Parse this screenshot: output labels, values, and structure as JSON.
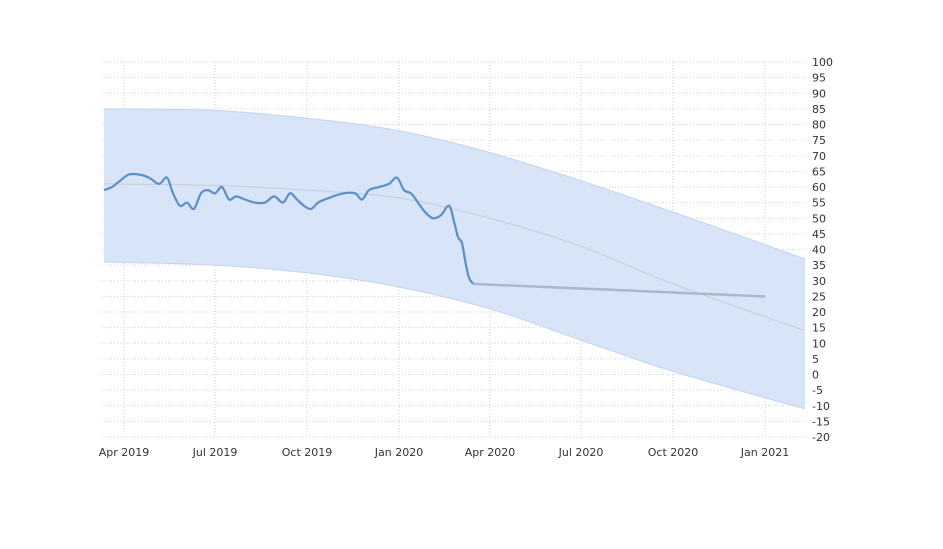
{
  "chart_data": {
    "type": "line",
    "title": "",
    "xlabel": "",
    "ylabel": "",
    "x_range": [
      "2019-03-10",
      "2021-02-10"
    ],
    "ylim": [
      -20,
      100
    ],
    "y_ticks": [
      100,
      95,
      90,
      85,
      80,
      75,
      70,
      65,
      60,
      55,
      50,
      45,
      40,
      35,
      30,
      25,
      20,
      15,
      10,
      5,
      0,
      -5,
      -10,
      -15,
      -20
    ],
    "x_ticks": [
      {
        "date": "2019-04-01",
        "label": "Apr 2019"
      },
      {
        "date": "2019-07-01",
        "label": "Jul 2019"
      },
      {
        "date": "2019-10-01",
        "label": "Oct 2019"
      },
      {
        "date": "2020-01-01",
        "label": "Jan 2020"
      },
      {
        "date": "2020-04-01",
        "label": "Apr 2020"
      },
      {
        "date": "2020-07-01",
        "label": "Jul 2020"
      },
      {
        "date": "2020-10-01",
        "label": "Oct 2020"
      },
      {
        "date": "2021-01-01",
        "label": "Jan 2021"
      }
    ],
    "grid": true,
    "colors": {
      "actual": "#5b8fc9",
      "forecast": "#a9b9cc",
      "band": "#d6e3f8",
      "band_edge": "#c3d4f0",
      "trend": "#c7cdd6"
    },
    "series": [
      {
        "role": "actual",
        "x": [
          "2019-03-12",
          "2019-03-20",
          "2019-03-28",
          "2019-04-06",
          "2019-04-16",
          "2019-04-26",
          "2019-05-06",
          "2019-05-14",
          "2019-05-20",
          "2019-05-27",
          "2019-06-03",
          "2019-06-10",
          "2019-06-17",
          "2019-06-24",
          "2019-07-01",
          "2019-07-08",
          "2019-07-15",
          "2019-07-22",
          "2019-07-31",
          "2019-08-10",
          "2019-08-20",
          "2019-08-29",
          "2019-09-07",
          "2019-09-14",
          "2019-09-21",
          "2019-09-28",
          "2019-10-05",
          "2019-10-12",
          "2019-10-19",
          "2019-10-27",
          "2019-11-07",
          "2019-11-18",
          "2019-11-25",
          "2019-12-02",
          "2019-12-12",
          "2019-12-22",
          "2019-12-30",
          "2020-01-06",
          "2020-01-13",
          "2020-01-20",
          "2020-01-27",
          "2020-02-04",
          "2020-02-12",
          "2020-02-20",
          "2020-02-25",
          "2020-02-29",
          "2020-03-04",
          "2020-03-08",
          "2020-03-11",
          "2020-03-15"
        ],
        "values": [
          59,
          60,
          62,
          64,
          64,
          63,
          61,
          63,
          58,
          54,
          55,
          53,
          58,
          59,
          58,
          60,
          56,
          57,
          56,
          55,
          55,
          57,
          55,
          58,
          56,
          54,
          53,
          55,
          56,
          57,
          58,
          58,
          56,
          59,
          60,
          61,
          63,
          59,
          58,
          55,
          52,
          50,
          51,
          54,
          49,
          44,
          42,
          35,
          31,
          29
        ]
      },
      {
        "role": "forecast",
        "x": [
          "2020-03-15",
          "2021-01-01"
        ],
        "values": [
          29,
          25
        ]
      },
      {
        "role": "trend",
        "x": [
          "2019-03-12",
          "2019-07-01",
          "2019-10-01",
          "2020-01-01",
          "2020-04-01",
          "2020-07-01",
          "2020-10-01",
          "2021-02-10"
        ],
        "values": [
          61,
          60.5,
          59,
          56.5,
          50,
          41,
          29,
          14
        ]
      },
      {
        "role": "band-upper",
        "x": [
          "2019-03-12",
          "2019-07-01",
          "2019-10-01",
          "2020-01-01",
          "2020-04-01",
          "2020-07-01",
          "2020-10-01",
          "2021-02-10"
        ],
        "values": [
          85,
          84.5,
          82,
          78,
          71,
          62,
          52,
          37
        ]
      },
      {
        "role": "band-lower",
        "x": [
          "2019-03-12",
          "2019-07-01",
          "2019-10-01",
          "2020-01-01",
          "2020-04-01",
          "2020-07-01",
          "2020-10-01",
          "2021-02-10"
        ],
        "values": [
          36,
          35,
          32.5,
          28,
          21,
          11,
          1,
          -11
        ]
      }
    ]
  }
}
